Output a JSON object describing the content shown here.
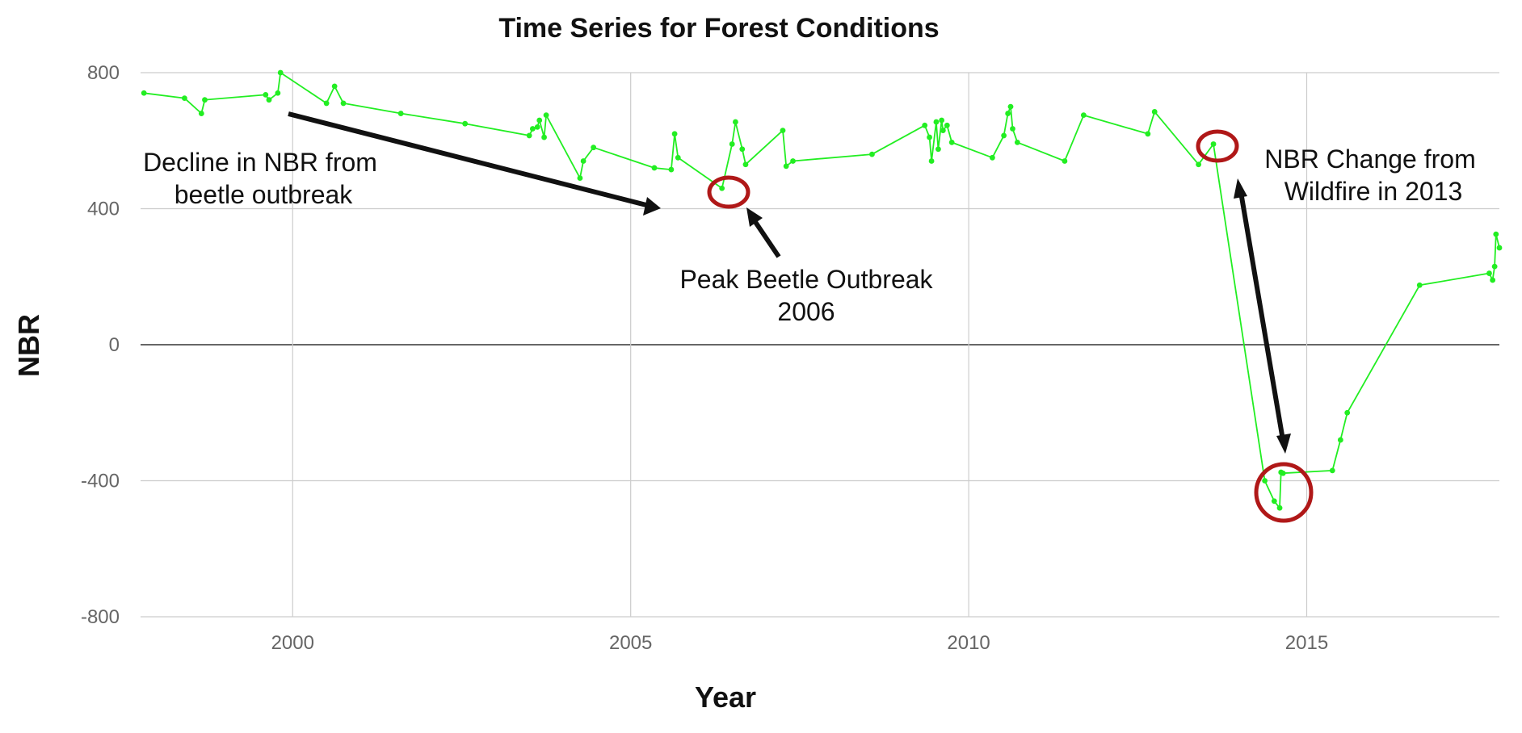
{
  "chart_data": {
    "type": "line",
    "title": "Time Series for Forest Conditions",
    "xlabel": "Year",
    "ylabel": "NBR",
    "xlim": [
      1997.75,
      2017.85
    ],
    "ylim": [
      -800,
      800
    ],
    "x_ticks": [
      2000,
      2005,
      2010,
      2015
    ],
    "x_tick_labels": [
      "2000",
      "2005",
      "2010",
      "2015"
    ],
    "y_ticks": [
      -800,
      -400,
      0,
      400,
      800
    ],
    "y_tick_labels": [
      "-800",
      "-400",
      "0",
      "400",
      "800"
    ],
    "grid": true,
    "legend": "none",
    "series": [
      {
        "color": "#22ee22",
        "x": [
          1997.8,
          1998.4,
          1998.65,
          1998.7,
          1999.6,
          1999.65,
          1999.78,
          1999.82,
          2000.5,
          2000.62,
          2000.75,
          2001.6,
          2002.55,
          2003.5,
          2003.55,
          2003.62,
          2003.65,
          2003.72,
          2003.75,
          2004.25,
          2004.3,
          2004.45,
          2005.35,
          2005.6,
          2005.65,
          2005.7,
          2006.35,
          2006.5,
          2006.55,
          2006.65,
          2006.7,
          2007.25,
          2007.3,
          2007.4,
          2008.57,
          2009.35,
          2009.42,
          2009.45,
          2009.52,
          2009.55,
          2009.6,
          2009.62,
          2009.68,
          2009.75,
          2010.35,
          2010.52,
          2010.58,
          2010.62,
          2010.65,
          2010.72,
          2011.42,
          2011.7,
          2012.65,
          2012.75,
          2013.4,
          2013.62,
          2014.38,
          2014.52,
          2014.6,
          2014.62,
          2014.65,
          2015.38,
          2015.5,
          2015.6,
          2016.67,
          2017.7,
          2017.75,
          2017.78,
          2017.8,
          2017.85
        ],
        "y": [
          740,
          725,
          680,
          720,
          735,
          720,
          740,
          800,
          710,
          760,
          710,
          680,
          650,
          615,
          635,
          640,
          660,
          610,
          675,
          490,
          540,
          580,
          520,
          515,
          620,
          550,
          460,
          590,
          655,
          575,
          530,
          630,
          525,
          540,
          560,
          645,
          610,
          540,
          655,
          575,
          660,
          630,
          645,
          595,
          550,
          615,
          680,
          700,
          635,
          595,
          540,
          675,
          620,
          685,
          530,
          590,
          -400,
          -460,
          -480,
          -375,
          -378,
          -370,
          -280,
          -200,
          175,
          210,
          190,
          230,
          325,
          285
        ]
      }
    ],
    "annotations": [
      {
        "text_lines": [
          "Decline in NBR from",
          "beetle outbreak"
        ]
      },
      {
        "text_lines": [
          "Peak Beetle Outbreak",
          "2006"
        ]
      },
      {
        "text_lines": [
          "NBR Change from",
          "Wildfire in 2013"
        ]
      }
    ]
  }
}
